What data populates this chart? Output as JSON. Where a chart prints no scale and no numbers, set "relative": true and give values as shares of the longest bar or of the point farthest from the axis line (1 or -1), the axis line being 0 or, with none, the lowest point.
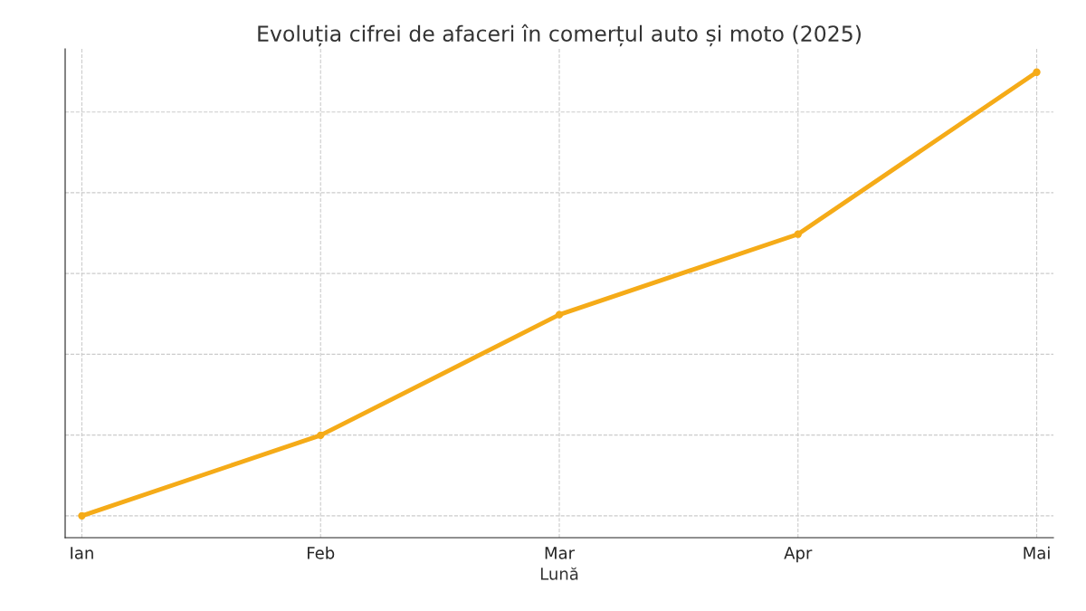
{
  "chart_data": {
    "type": "line",
    "title": "Evoluția cifrei de afaceri în comerțul auto și moto (2025)",
    "xlabel": "Lună",
    "categories": [
      "Ian",
      "Feb",
      "Mar",
      "Apr",
      "Mai"
    ],
    "series": [
      {
        "color": "#f5ab18",
        "values": [
          0.047,
          0.22,
          0.479,
          0.652,
          1.0
        ]
      }
    ],
    "relative": true,
    "grid": true,
    "marker": "circle",
    "line_style": "solid",
    "tick_labels": "x"
  }
}
